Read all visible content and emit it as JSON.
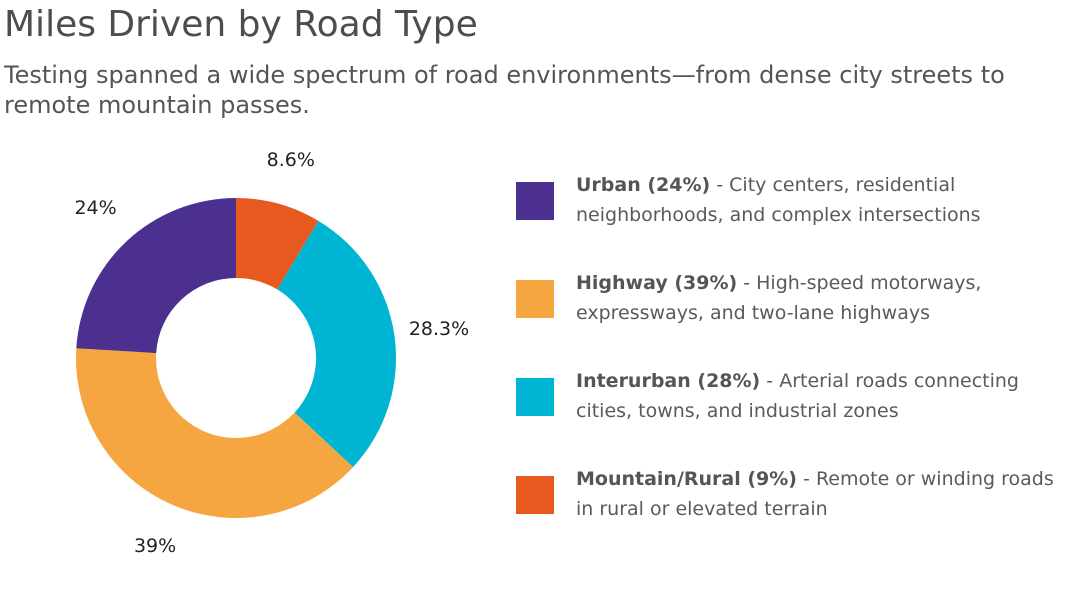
{
  "title": "Miles Driven by Road Type",
  "subtitle": "Testing spanned a wide spectrum of road environments—from dense city streets to remote mountain passes.",
  "chart_data": {
    "type": "pie",
    "donut": true,
    "slices": [
      {
        "name": "Mountain/Rural",
        "value": 8.6,
        "label": "8.6%",
        "color": "#e8591f"
      },
      {
        "name": "Interurban",
        "value": 28.3,
        "label": "28.3%",
        "color": "#00b4d4"
      },
      {
        "name": "Highway",
        "value": 39,
        "label": "39%",
        "color": "#f5a640"
      },
      {
        "name": "Urban",
        "value": 24,
        "label": "24%",
        "color": "#4b3090"
      }
    ]
  },
  "legend": [
    {
      "name": "Urban (24%)",
      "description": "- City centers, residential neighborhoods, and complex intersections",
      "color": "#4b3090"
    },
    {
      "name": "Highway (39%)",
      "description": "- High-speed motorways, expressways, and two-lane highways",
      "color": "#f5a640"
    },
    {
      "name": "Interurban (28%)",
      "description": "- Arterial roads connecting cities, towns, and industrial zones",
      "color": "#00b4d4"
    },
    {
      "name": "Mountain/Rural (9%)",
      "description": "- Remote or winding roads in rural or elevated terrain",
      "color": "#e8591f"
    }
  ]
}
